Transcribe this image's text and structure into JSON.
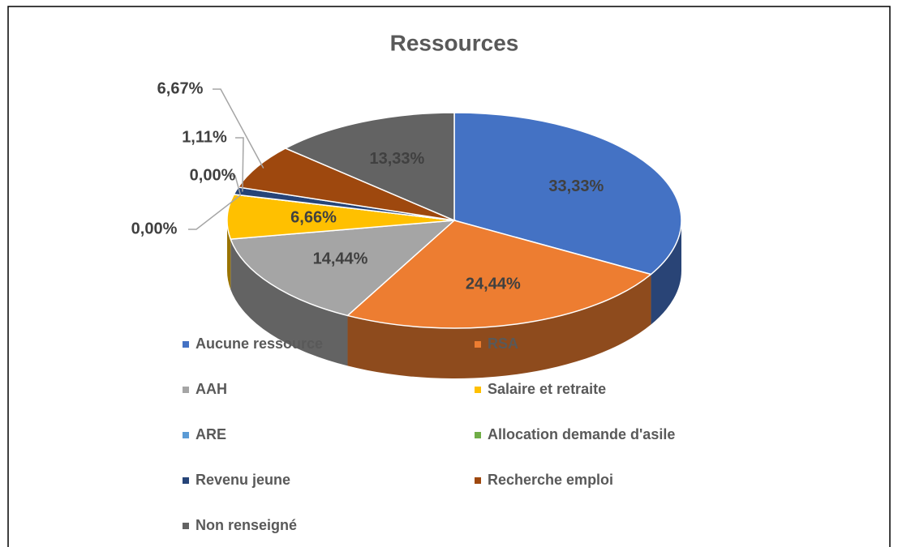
{
  "chart_data": {
    "type": "pie3d",
    "title": "Ressources",
    "categories": [
      "Aucune ressource",
      "RSA",
      "AAH",
      "Salaire et retraite",
      "ARE",
      "Allocation demande d'asile",
      "Revenu jeune",
      "Recherche emploi",
      "Non renseigné"
    ],
    "values": [
      33.33,
      24.44,
      14.44,
      6.66,
      0.0,
      0.0,
      1.11,
      6.67,
      13.33
    ],
    "value_labels": [
      "33,33%",
      "24,44%",
      "14,44%",
      "6,66%",
      "0,00%",
      "0,00%",
      "1,11%",
      "6,67%",
      "13,33%"
    ],
    "colors": [
      "#4472c4",
      "#ed7d31",
      "#a5a5a5",
      "#ffc000",
      "#5b9bd5",
      "#70ad47",
      "#264478",
      "#9e480e",
      "#636363"
    ],
    "legend": "bottom"
  }
}
